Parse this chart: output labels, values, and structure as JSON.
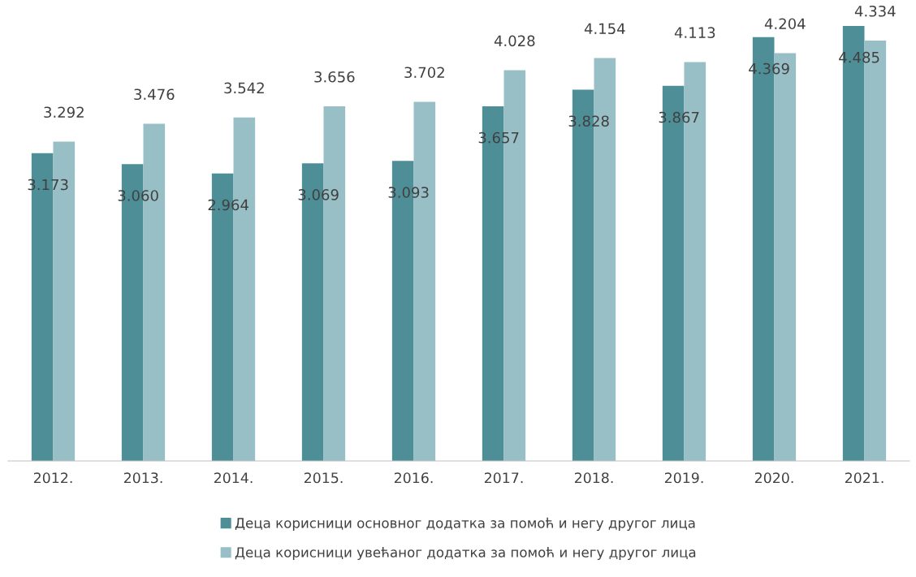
{
  "chart_data": {
    "type": "bar",
    "categories": [
      "2012.",
      "2013.",
      "2014.",
      "2015.",
      "2016.",
      "2017.",
      "2018.",
      "2019.",
      "2020.",
      "2021."
    ],
    "series": [
      {
        "name": "Деца корисници основног додатка за помоћ и негу другог лица",
        "color": "#4e8f97",
        "values": [
          3173,
          3060,
          2964,
          3069,
          3093,
          3657,
          3828,
          3867,
          4369,
          4485
        ],
        "value_labels": [
          "3.173",
          "3.060",
          "2.964",
          "3.069",
          "3.093",
          "3.657",
          "3.828",
          "3.867",
          "4.369",
          "4.485"
        ]
      },
      {
        "name": "Деца корисници увећаног додатка за помоћ и негу другог лица",
        "color": "#98bfc6",
        "values": [
          3292,
          3476,
          3542,
          3656,
          3702,
          4028,
          4154,
          4113,
          4204,
          4334
        ],
        "value_labels": [
          "3.292",
          "3.476",
          "3.542",
          "3.656",
          "3.702",
          "4.028",
          "4.154",
          "4.113",
          "4.204",
          "4.334"
        ]
      }
    ],
    "legend": "bottom"
  }
}
